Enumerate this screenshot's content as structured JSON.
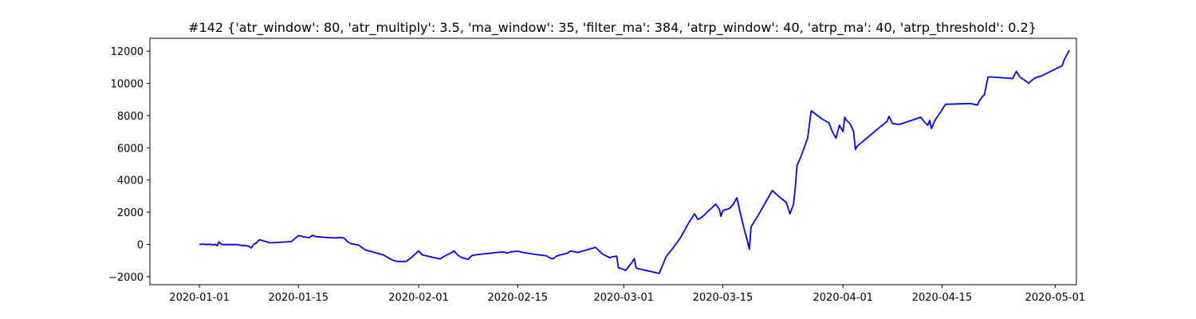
{
  "chart_data": {
    "type": "line",
    "title": "#142 {'atr_window': 80, 'atr_multiply': 3.5, 'ma_window': 35, 'filter_ma': 384, 'atrp_window': 40, 'atrp_ma': 40, 'atrp_threshold': 0.2}",
    "xlabel": "",
    "ylabel": "",
    "x_axis_type": "date",
    "xlim": [
      "2019-12-25",
      "2020-05-04"
    ],
    "ylim": [
      -2500,
      12800
    ],
    "x_ticks": [
      "2020-01-01",
      "2020-01-15",
      "2020-02-01",
      "2020-02-15",
      "2020-03-01",
      "2020-03-15",
      "2020-04-01",
      "2020-04-15",
      "2020-05-01"
    ],
    "y_ticks": [
      -2000,
      0,
      2000,
      4000,
      6000,
      8000,
      10000,
      12000
    ],
    "y_tick_labels": [
      "−2000",
      "0",
      "2000",
      "4000",
      "6000",
      "8000",
      "10000",
      "12000"
    ],
    "grid": false,
    "legend": "none",
    "color": "#0000ff",
    "series": [
      {
        "points": [
          [
            "2020-01-01",
            0
          ],
          [
            "2020-01-01 12:00",
            20
          ],
          [
            "2020-01-02",
            -10
          ],
          [
            "2020-01-02 12:00",
            10
          ],
          [
            "2020-01-03",
            -30
          ],
          [
            "2020-01-03 06:00",
            0
          ],
          [
            "2020-01-03 12:00",
            -80
          ],
          [
            "2020-01-03 18:00",
            150
          ],
          [
            "2020-01-04",
            50
          ],
          [
            "2020-01-04 06:00",
            -10
          ],
          [
            "2020-01-06",
            -10
          ],
          [
            "2020-01-06 12:00",
            -20
          ],
          [
            "2020-01-07",
            -70
          ],
          [
            "2020-01-07 12:00",
            -60
          ],
          [
            "2020-01-08",
            -120
          ],
          [
            "2020-01-08 08:00",
            -220
          ],
          [
            "2020-01-08 16:00",
            0
          ],
          [
            "2020-01-09",
            80
          ],
          [
            "2020-01-09 12:00",
            300
          ],
          [
            "2020-01-10",
            230
          ],
          [
            "2020-01-11",
            100
          ],
          [
            "2020-01-13",
            150
          ],
          [
            "2020-01-14",
            180
          ],
          [
            "2020-01-15",
            550
          ],
          [
            "2020-01-16",
            450
          ],
          [
            "2020-01-16 12:00",
            420
          ],
          [
            "2020-01-17",
            570
          ],
          [
            "2020-01-17 12:00",
            480
          ],
          [
            "2020-01-20",
            400
          ],
          [
            "2020-01-21",
            430
          ],
          [
            "2020-01-21 12:00",
            380
          ],
          [
            "2020-01-22",
            150
          ],
          [
            "2020-01-22 12:00",
            40
          ],
          [
            "2020-01-23",
            0
          ],
          [
            "2020-01-23 12:00",
            -40
          ],
          [
            "2020-01-24",
            -200
          ],
          [
            "2020-01-24 12:00",
            -350
          ],
          [
            "2020-01-25",
            -400
          ],
          [
            "2020-01-27",
            -650
          ],
          [
            "2020-01-28",
            -900
          ],
          [
            "2020-01-28 12:00",
            -1000
          ],
          [
            "2020-01-29",
            -1060
          ],
          [
            "2020-01-30",
            -1050
          ],
          [
            "2020-01-30 06:00",
            -1060
          ],
          [
            "2020-01-31",
            -800
          ],
          [
            "2020-01-31 12:00",
            -600
          ],
          [
            "2020-02-01",
            -400
          ],
          [
            "2020-02-01 12:00",
            -650
          ],
          [
            "2020-02-02",
            -700
          ],
          [
            "2020-02-04",
            -900
          ],
          [
            "2020-02-05",
            -650
          ],
          [
            "2020-02-05 12:00",
            -550
          ],
          [
            "2020-02-06",
            -400
          ],
          [
            "2020-02-06 12:00",
            -650
          ],
          [
            "2020-02-07",
            -800
          ],
          [
            "2020-02-08",
            -920
          ],
          [
            "2020-02-08 12:00",
            -700
          ],
          [
            "2020-02-09",
            -650
          ],
          [
            "2020-02-12",
            -500
          ],
          [
            "2020-02-13",
            -460
          ],
          [
            "2020-02-13 12:00",
            -540
          ],
          [
            "2020-02-14",
            -460
          ],
          [
            "2020-02-15",
            -420
          ],
          [
            "2020-02-16",
            -520
          ],
          [
            "2020-02-18",
            -650
          ],
          [
            "2020-02-19",
            -700
          ],
          [
            "2020-02-19 12:00",
            -820
          ],
          [
            "2020-02-20",
            -900
          ],
          [
            "2020-02-20 12:00",
            -720
          ],
          [
            "2020-02-21",
            -660
          ],
          [
            "2020-02-22",
            -550
          ],
          [
            "2020-02-22 12:00",
            -400
          ],
          [
            "2020-02-23",
            -450
          ],
          [
            "2020-02-23 12:00",
            -500
          ],
          [
            "2020-02-26",
            -180
          ],
          [
            "2020-02-27",
            -600
          ],
          [
            "2020-02-28",
            -820
          ],
          [
            "2020-02-28 12:00",
            -760
          ],
          [
            "2020-02-29",
            -720
          ],
          [
            "2020-02-29 06:00",
            -1450
          ],
          [
            "2020-03-01",
            -1550
          ],
          [
            "2020-03-01 06:00",
            -1620
          ],
          [
            "2020-03-02",
            -1200
          ],
          [
            "2020-03-02 12:00",
            -880
          ],
          [
            "2020-03-02 18:00",
            -1450
          ],
          [
            "2020-03-03",
            -1500
          ],
          [
            "2020-03-06",
            -1800
          ],
          [
            "2020-03-07",
            -750
          ],
          [
            "2020-03-08",
            -200
          ],
          [
            "2020-03-09",
            400
          ],
          [
            "2020-03-10",
            1200
          ],
          [
            "2020-03-11",
            1900
          ],
          [
            "2020-03-11 12:00",
            1550
          ],
          [
            "2020-03-12",
            1680
          ],
          [
            "2020-03-14",
            2500
          ],
          [
            "2020-03-14 12:00",
            2200
          ],
          [
            "2020-03-14 18:00",
            1750
          ],
          [
            "2020-03-15",
            2100
          ],
          [
            "2020-03-16",
            2250
          ],
          [
            "2020-03-16 12:00",
            2500
          ],
          [
            "2020-03-17",
            2900
          ],
          [
            "2020-03-17 12:00",
            1900
          ],
          [
            "2020-03-18",
            1000
          ],
          [
            "2020-03-18 12:00",
            200
          ],
          [
            "2020-03-18 18:00",
            -300
          ],
          [
            "2020-03-19",
            1100
          ],
          [
            "2020-03-20",
            1800
          ],
          [
            "2020-03-22",
            3350
          ],
          [
            "2020-03-23",
            2950
          ],
          [
            "2020-03-24",
            2600
          ],
          [
            "2020-03-24 12:00",
            1900
          ],
          [
            "2020-03-25",
            2500
          ],
          [
            "2020-03-25 06:00",
            3500
          ],
          [
            "2020-03-25 12:00",
            4900
          ],
          [
            "2020-03-26",
            5400
          ],
          [
            "2020-03-27",
            6600
          ],
          [
            "2020-03-27 12:00",
            8300
          ],
          [
            "2020-03-29",
            7800
          ],
          [
            "2020-03-30",
            7550
          ],
          [
            "2020-03-30 12:00",
            7000
          ],
          [
            "2020-03-31",
            6600
          ],
          [
            "2020-03-31 12:00",
            7400
          ],
          [
            "2020-04-01",
            7000
          ],
          [
            "2020-04-01 06:00",
            7900
          ],
          [
            "2020-04-01 12:00",
            7700
          ],
          [
            "2020-04-02",
            7500
          ],
          [
            "2020-04-02 12:00",
            7000
          ],
          [
            "2020-04-02 18:00",
            5900
          ],
          [
            "2020-04-03",
            6100
          ],
          [
            "2020-04-06",
            7200
          ],
          [
            "2020-04-07 06:00",
            7650
          ],
          [
            "2020-04-07 12:00",
            7950
          ],
          [
            "2020-04-08",
            7500
          ],
          [
            "2020-04-09",
            7450
          ],
          [
            "2020-04-12",
            7900
          ],
          [
            "2020-04-12 12:00",
            7600
          ],
          [
            "2020-04-13",
            7400
          ],
          [
            "2020-04-13 06:00",
            7700
          ],
          [
            "2020-04-13 12:00",
            7200
          ],
          [
            "2020-04-14",
            7700
          ],
          [
            "2020-04-15 12:00",
            8700
          ],
          [
            "2020-04-19",
            8750
          ],
          [
            "2020-04-20",
            8650
          ],
          [
            "2020-04-20 06:00",
            8900
          ],
          [
            "2020-04-20 18:00",
            9200
          ],
          [
            "2020-04-21",
            9300
          ],
          [
            "2020-04-21 12:00",
            10400
          ],
          [
            "2020-04-22",
            10400
          ],
          [
            "2020-04-25",
            10300
          ],
          [
            "2020-04-25 12:00",
            10750
          ],
          [
            "2020-04-26",
            10400
          ],
          [
            "2020-04-27",
            10100
          ],
          [
            "2020-04-27 06:00",
            10000
          ],
          [
            "2020-04-28",
            10300
          ],
          [
            "2020-04-28 12:00",
            10400
          ],
          [
            "2020-04-29",
            10450
          ],
          [
            "2020-05-02",
            11100
          ],
          [
            "2020-05-02 06:00",
            11450
          ],
          [
            "2020-05-03",
            12050
          ]
        ]
      }
    ]
  }
}
